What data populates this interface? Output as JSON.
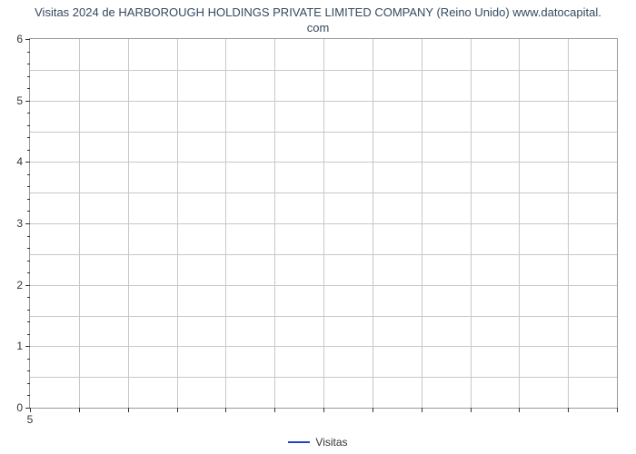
{
  "chart": {
    "type": "line",
    "title_line1": "Visitas 2024 de HARBOROUGH HOLDINGS PRIVATE LIMITED COMPANY (Reino Unido) www.datocapital.",
    "title_line2": "com",
    "title_fontsize": 13,
    "title_color": "#34495e",
    "ylim": [
      0,
      6
    ],
    "ytick_major_positions": [
      0,
      1,
      2,
      3,
      4,
      5,
      6
    ],
    "ytick_labels": [
      "0",
      "1",
      "2",
      "3",
      "4",
      "5",
      "6"
    ],
    "ytick_minor_count_between": 4,
    "xlim": [
      0,
      12
    ],
    "xtick_positions": [
      0,
      1,
      2,
      3,
      4,
      5,
      6,
      7,
      8,
      9,
      10,
      11,
      12
    ],
    "xtick_labels": [
      "5"
    ],
    "grid_v_count": 12,
    "grid_h_major": 6,
    "grid_h_mid": true,
    "grid_color": "#c8c8c8",
    "border_color": "#999999",
    "background_color": "#ffffff",
    "legend_label": "Visitas",
    "legend_color": "#2244cc",
    "legend_line_width": 2,
    "label_fontsize": 12,
    "label_color": "#333333",
    "series": {
      "name": "Visitas",
      "x": [],
      "y": [],
      "color": "#2244cc",
      "line_width": 2
    }
  }
}
